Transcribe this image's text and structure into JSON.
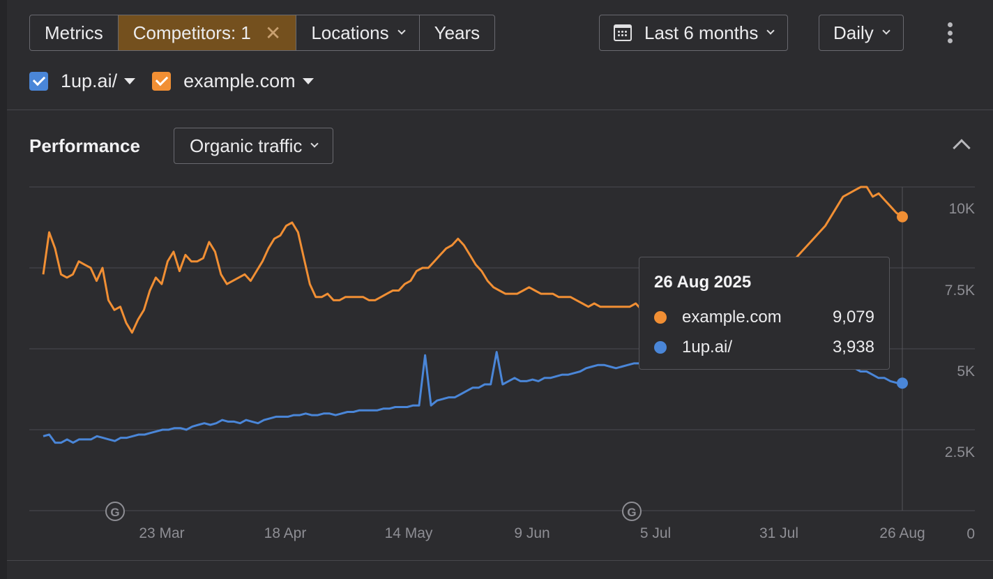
{
  "toolbar": {
    "segments": {
      "metrics": "Metrics",
      "competitors": "Competitors: 1",
      "competitors_clear": "✕",
      "locations": "Locations",
      "years": "Years"
    },
    "date_range": "Last 6 months",
    "granularity": "Daily"
  },
  "legend": {
    "items": [
      {
        "label": "1up.ai/",
        "color": "#4a86d8",
        "checked": true
      },
      {
        "label": "example.com",
        "color": "#f18f34",
        "checked": true
      }
    ]
  },
  "performance": {
    "title": "Performance",
    "metric_select": "Organic traffic"
  },
  "tooltip": {
    "date": "26 Aug 2025",
    "rows": [
      {
        "name": "example.com",
        "value": "9,079",
        "color": "#f18f34"
      },
      {
        "name": "1up.ai/",
        "value": "3,938",
        "color": "#4a86d8"
      }
    ]
  },
  "colors": {
    "accent_active": "#74501e",
    "series_orange": "#f18f34",
    "series_blue": "#4a86d8"
  },
  "icons": {
    "calendar": "calendar-icon",
    "google_update": "google-g-icon"
  },
  "chart_data": {
    "type": "line",
    "x_tick_labels": [
      "23 Mar",
      "18 Apr",
      "14 May",
      "9 Jun",
      "5 Jul",
      "31 Jul",
      "26 Aug"
    ],
    "y_tick_labels": [
      "10K",
      "7.5K",
      "5K",
      "2.5K",
      "0"
    ],
    "ylim": [
      0,
      10000
    ],
    "grid": true,
    "annotations": [
      "google-update",
      "google-update"
    ],
    "series": [
      {
        "name": "example.com",
        "color": "#f18f34",
        "values": [
          7300,
          8600,
          8100,
          7300,
          7200,
          7300,
          7700,
          7600,
          7500,
          7100,
          7500,
          6500,
          6200,
          6300,
          5800,
          5500,
          5900,
          6200,
          6800,
          7200,
          7000,
          7700,
          8000,
          7400,
          7900,
          7700,
          7700,
          7800,
          8300,
          8000,
          7300,
          7000,
          7100,
          7200,
          7300,
          7100,
          7400,
          7700,
          8100,
          8400,
          8500,
          8800,
          8900,
          8600,
          7800,
          7000,
          6600,
          6600,
          6700,
          6500,
          6500,
          6600,
          6600,
          6600,
          6600,
          6500,
          6500,
          6600,
          6700,
          6800,
          6800,
          7000,
          7100,
          7400,
          7500,
          7500,
          7700,
          7900,
          8100,
          8200,
          8400,
          8200,
          7900,
          7600,
          7400,
          7100,
          6900,
          6800,
          6700,
          6700,
          6700,
          6800,
          6900,
          6800,
          6700,
          6700,
          6700,
          6600,
          6600,
          6600,
          6500,
          6400,
          6300,
          6400,
          6300,
          6300,
          6300,
          6300,
          6300,
          6300,
          6400,
          6200,
          6100,
          6100,
          6100,
          6200,
          6300,
          6500,
          6700,
          6800,
          6800,
          6700,
          6600,
          6600,
          6500,
          6600,
          6700,
          6800,
          6900,
          7000,
          7100,
          7300,
          7300,
          7400,
          7500,
          7600,
          7700,
          7800,
          8000,
          8200,
          8400,
          8600,
          8800,
          9100,
          9400,
          9700,
          9800,
          9900,
          10000,
          10000,
          9700,
          9800,
          9600,
          9400,
          9200,
          9079
        ]
      },
      {
        "name": "1up.ai/",
        "color": "#4a86d8",
        "values": [
          2300,
          2350,
          2100,
          2100,
          2200,
          2100,
          2200,
          2200,
          2200,
          2300,
          2250,
          2200,
          2150,
          2250,
          2250,
          2300,
          2350,
          2350,
          2400,
          2450,
          2500,
          2500,
          2550,
          2550,
          2500,
          2600,
          2650,
          2700,
          2650,
          2700,
          2800,
          2750,
          2750,
          2700,
          2800,
          2750,
          2700,
          2800,
          2850,
          2900,
          2900,
          2900,
          2950,
          2950,
          3000,
          2950,
          2950,
          3000,
          3000,
          2950,
          3000,
          3050,
          3050,
          3100,
          3100,
          3100,
          3100,
          3150,
          3150,
          3200,
          3200,
          3200,
          3250,
          3250,
          4800,
          3250,
          3400,
          3450,
          3500,
          3500,
          3600,
          3700,
          3800,
          3800,
          3900,
          3900,
          4900,
          3900,
          4000,
          4100,
          4000,
          4000,
          4050,
          4000,
          4100,
          4100,
          4150,
          4200,
          4200,
          4250,
          4300,
          4400,
          4450,
          4500,
          4500,
          4450,
          4400,
          4450,
          4500,
          4550,
          4550,
          4550,
          4600,
          4600,
          4550,
          4600,
          4650,
          4700,
          4750,
          4800,
          4850,
          4900,
          4900,
          4950,
          4950,
          5000,
          5000,
          4900,
          5000,
          4950,
          5050,
          5000,
          4950,
          4900,
          4850,
          4800,
          4700,
          4650,
          4700,
          4600,
          4600,
          4650,
          4600,
          4550,
          4500,
          4400,
          4400,
          4300,
          4300,
          4200,
          4100,
          4100,
          4000,
          3950,
          3938
        ]
      }
    ]
  }
}
